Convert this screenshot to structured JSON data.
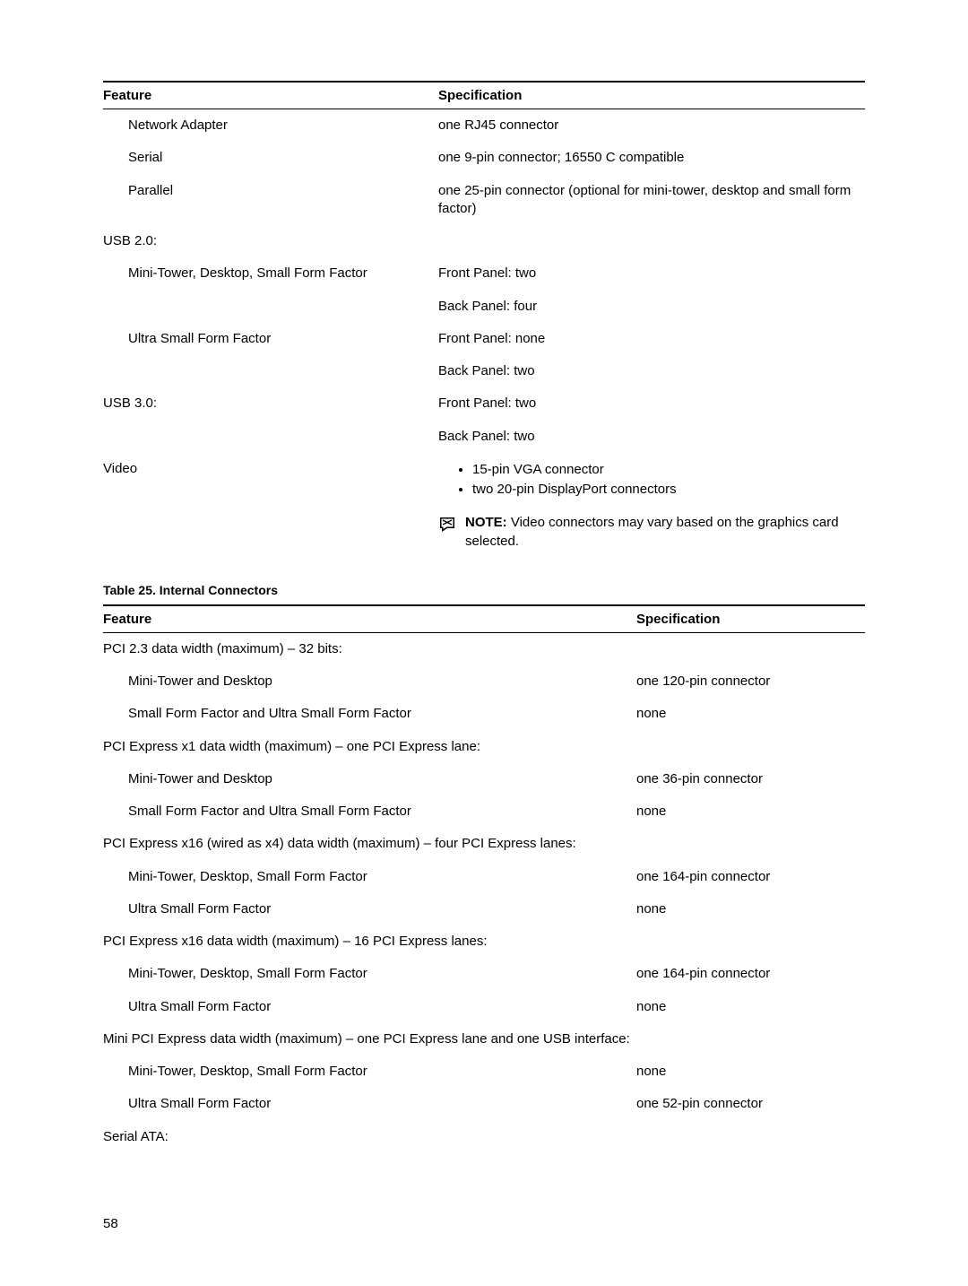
{
  "table1": {
    "headers": {
      "c1": "Feature",
      "c2": "Specification"
    },
    "col_widths": {
      "c1": "44%",
      "c2": "56%"
    },
    "rows": [
      {
        "i": 1,
        "f": "Network Adapter",
        "s": "one RJ45 connector"
      },
      {
        "i": 1,
        "f": "Serial",
        "s": "one 9-pin connector; 16550 C compatible"
      },
      {
        "i": 1,
        "f": "Parallel",
        "s": "one 25-pin connector (optional for mini-tower, desktop and small form factor)"
      },
      {
        "i": 0,
        "f": "USB 2.0:",
        "s": ""
      },
      {
        "i": 1,
        "f": "Mini-Tower, Desktop, Small Form Factor",
        "s": "Front Panel: two"
      },
      {
        "i": 1,
        "f": "",
        "s": "Back Panel: four"
      },
      {
        "i": 1,
        "f": "Ultra Small Form Factor",
        "s": "Front Panel: none"
      },
      {
        "i": 1,
        "f": "",
        "s": "Back Panel: two"
      },
      {
        "i": 0,
        "f": "USB 3.0:",
        "s": "Front Panel: two"
      },
      {
        "i": 0,
        "f": "",
        "s": "Back Panel: two"
      }
    ],
    "video_label": "Video",
    "video_bullets": [
      "15-pin VGA connector",
      "two 20-pin DisplayPort connectors"
    ],
    "note_label": "NOTE:",
    "note_text": " Video connectors may vary based on the graphics card selected."
  },
  "table2": {
    "caption": "Table 25. Internal Connectors",
    "headers": {
      "c1": "Feature",
      "c2": "Specification"
    },
    "col_widths": {
      "c1": "70%",
      "c2": "30%"
    },
    "rows": [
      {
        "i": 0,
        "f": "PCI 2.3 data width (maximum) – 32 bits:",
        "s": ""
      },
      {
        "i": 1,
        "f": "Mini-Tower and Desktop",
        "s": "one 120-pin connector"
      },
      {
        "i": 1,
        "f": "Small Form Factor and Ultra Small Form Factor",
        "s": "none"
      },
      {
        "i": 0,
        "f": "PCI Express x1 data width (maximum) – one PCI Express lane:",
        "s": ""
      },
      {
        "i": 1,
        "f": "Mini-Tower and Desktop",
        "s": "one 36-pin connector"
      },
      {
        "i": 1,
        "f": "Small Form Factor and Ultra Small Form Factor",
        "s": "none"
      },
      {
        "i": 0,
        "f": "PCI Express x16 (wired as x4) data width (maximum) – four PCI Express lanes:",
        "s": ""
      },
      {
        "i": 1,
        "f": "Mini-Tower, Desktop, Small Form Factor",
        "s": "one 164-pin connector"
      },
      {
        "i": 1,
        "f": "Ultra Small Form Factor",
        "s": "none"
      },
      {
        "i": 0,
        "f": "PCI Express x16 data width (maximum) – 16 PCI Express lanes:",
        "s": ""
      },
      {
        "i": 1,
        "f": "Mini-Tower, Desktop, Small Form Factor",
        "s": "one 164-pin connector"
      },
      {
        "i": 1,
        "f": "Ultra Small Form Factor",
        "s": "none"
      },
      {
        "i": 0,
        "f": "Mini PCI Express data width (maximum) – one PCI Express lane and one USB interface:",
        "s": ""
      },
      {
        "i": 1,
        "f": "Mini-Tower, Desktop, Small Form Factor",
        "s": "none"
      },
      {
        "i": 1,
        "f": "Ultra Small Form Factor",
        "s": "one 52-pin connector"
      },
      {
        "i": 0,
        "f": "Serial ATA:",
        "s": ""
      }
    ]
  },
  "page_number": "58",
  "colors": {
    "text": "#000000",
    "border": "#000000",
    "bg": "#ffffff"
  }
}
